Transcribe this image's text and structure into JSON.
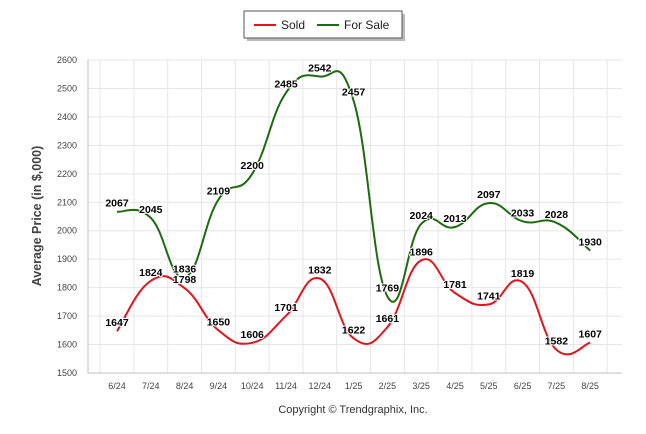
{
  "chart_data": {
    "type": "line",
    "categories": [
      "6/24",
      "7/24",
      "8/24",
      "9/24",
      "10/24",
      "11/24",
      "12/24",
      "1/25",
      "2/25",
      "3/25",
      "4/25",
      "5/25",
      "6/25",
      "7/25",
      "8/25"
    ],
    "series": [
      {
        "name": "Sold",
        "color": "#e0161e",
        "values": [
          1647,
          1824,
          1798,
          1650,
          1606,
          1701,
          1832,
          1622,
          1661,
          1896,
          1781,
          1741,
          1819,
          1582,
          1607
        ]
      },
      {
        "name": "For Sale",
        "color": "#1e6a10",
        "values": [
          2067,
          2045,
          1836,
          2109,
          2200,
          2485,
          2542,
          2457,
          1769,
          2024,
          2013,
          2097,
          2033,
          2028,
          1930
        ]
      }
    ],
    "ylabel": "Average Price (in $,000)",
    "ylim": [
      1500,
      2600
    ],
    "yticks": [
      1500,
      1600,
      1700,
      1800,
      1900,
      2000,
      2100,
      2200,
      2300,
      2400,
      2500,
      2600
    ],
    "grid": true,
    "legend_position": "top-center",
    "credit": "Copyright © Trendgraphix, Inc."
  }
}
